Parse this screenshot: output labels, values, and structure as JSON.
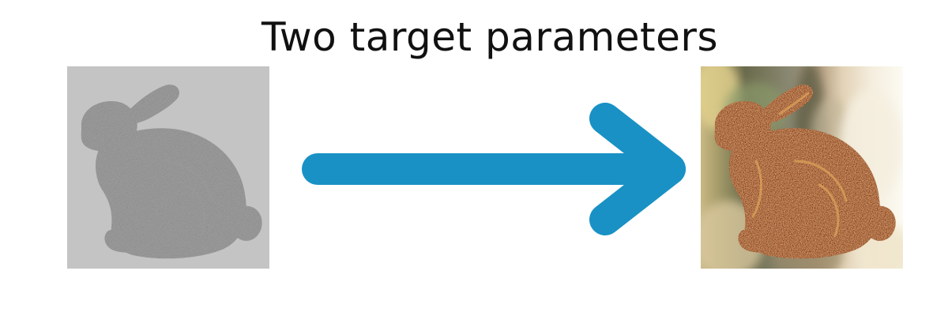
{
  "title": "Two target parameters",
  "colors": {
    "arrow": "#1991c5",
    "left_background": "#c4c4c4",
    "left_bunny": "#a9a9a9",
    "right_bunny": "#8a3a18"
  },
  "icons": {
    "left_image": "gray-bunny-render",
    "arrow": "right-arrow-icon",
    "right_image": "textured-bunny-render"
  }
}
